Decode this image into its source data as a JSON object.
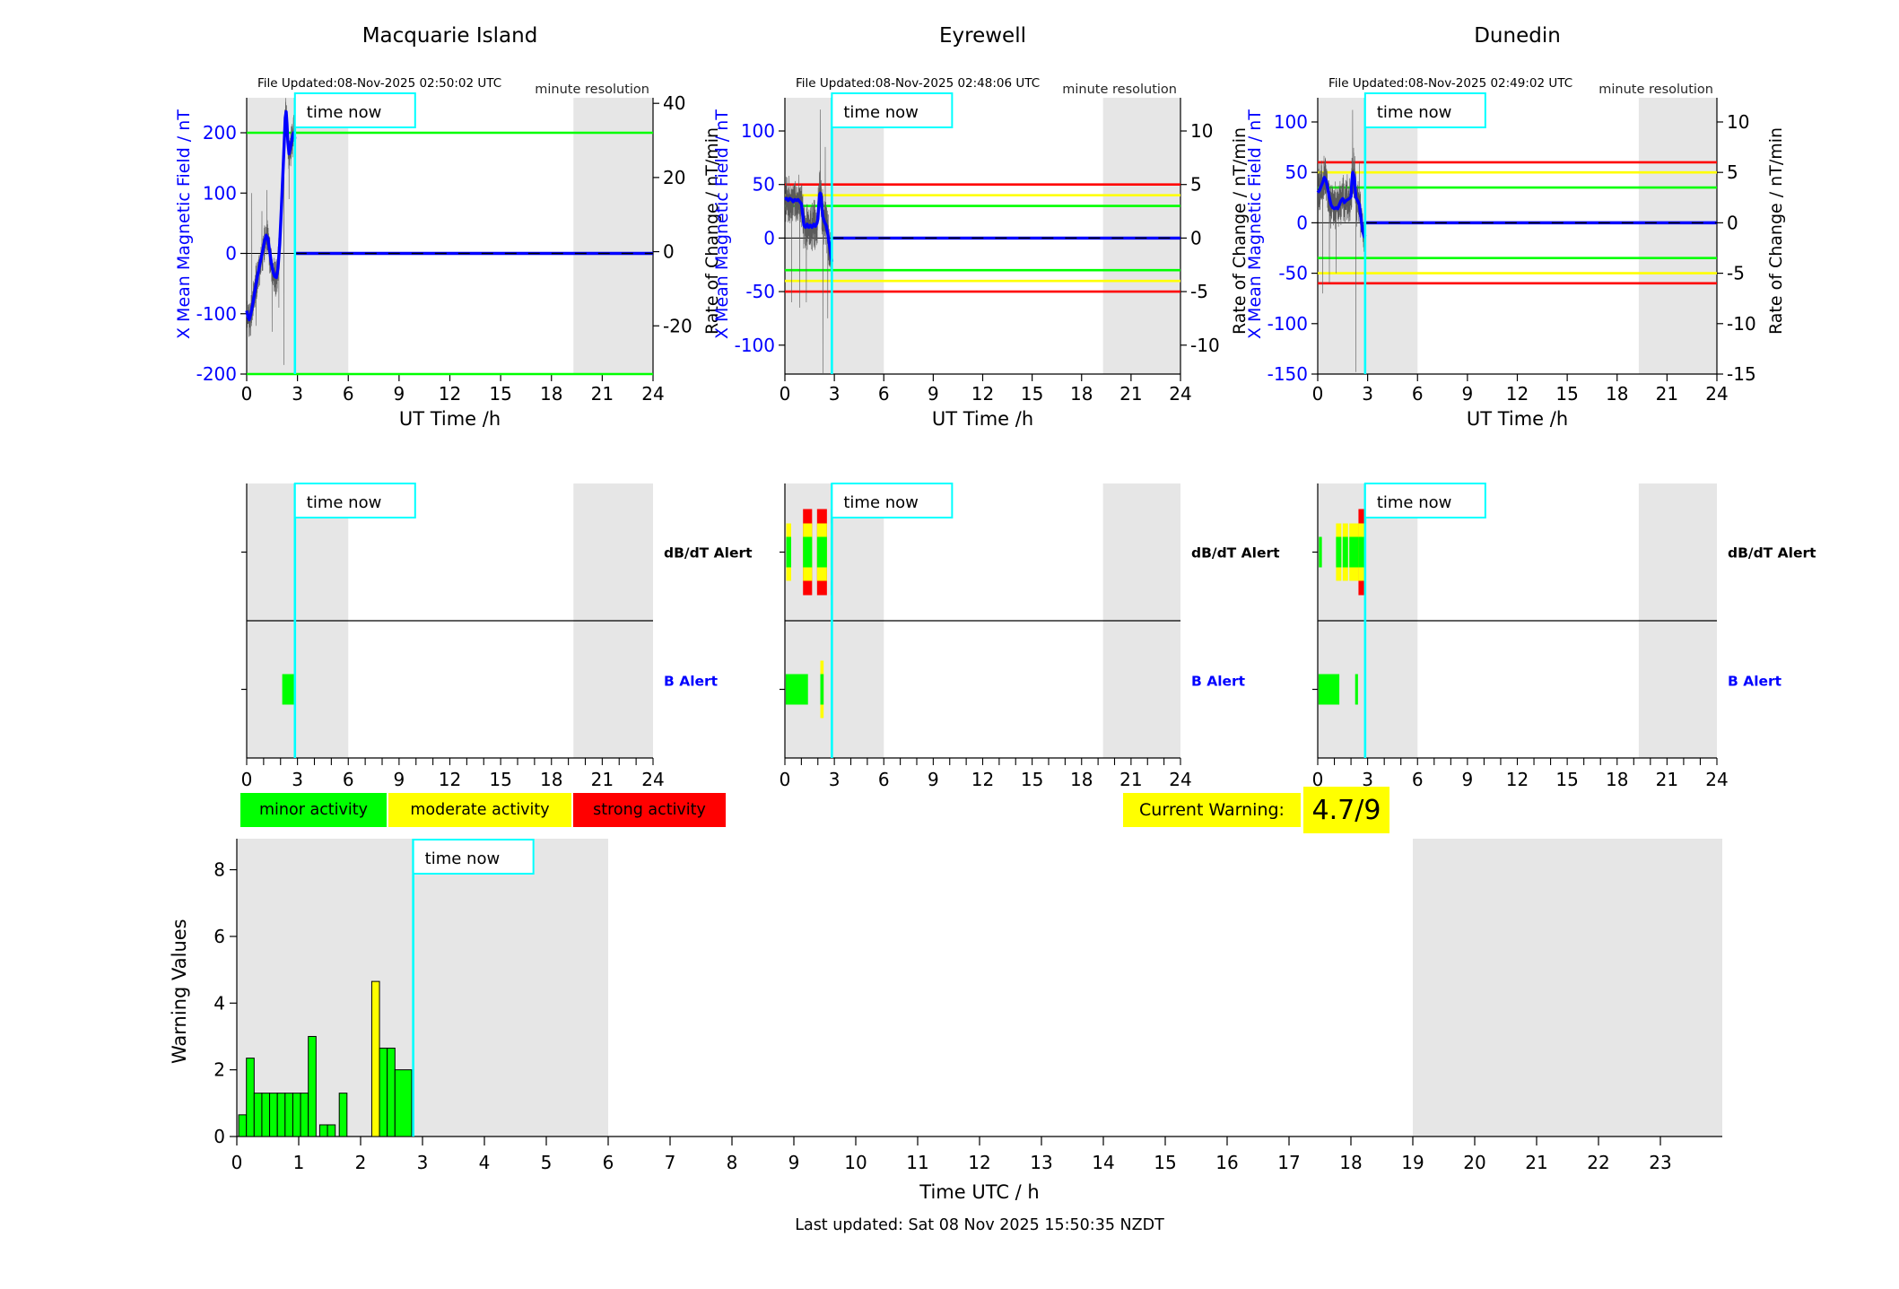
{
  "page": {
    "last_updated": "Last updated: Sat 08 Nov 2025 15:50:35 NZDT"
  },
  "colors": {
    "minor": "#00ff00",
    "moderate": "#ffff00",
    "strong": "#ff0000",
    "data_blue": "#0000ff",
    "axis_blue": "#0000ff",
    "time_now_cyan": "#00ffff",
    "shade_gray": "#e6e6e6",
    "noise_gray": "#5a5a5a",
    "warning_box": "#ffff00"
  },
  "labels": {
    "time_now": "time now",
    "minute_resolution": "minute resolution",
    "dbdt_alert": "dB/dT Alert",
    "b_alert": "B Alert",
    "ut_time": "UT Time /h"
  },
  "legend": [
    {
      "label": "minor activity",
      "color_key": "minor"
    },
    {
      "label": "moderate activity",
      "color_key": "moderate"
    },
    {
      "label": "strong activity",
      "color_key": "strong"
    }
  ],
  "warning": {
    "label": "Current Warning:",
    "value": "4.7/9"
  },
  "chart_data": [
    {
      "type": "line",
      "station": "Macquarie Island",
      "file_updated": "File Updated:08-Nov-2025 02:50:02 UTC",
      "resolution_label": "minute resolution",
      "ylabel_left": "X Mean Magnetic Field / nT",
      "ylabel_right": "Rate of Change / nT/min",
      "xlabel": "UT Time /h",
      "xlim": [
        0,
        24
      ],
      "x_ticks": [
        0,
        3,
        6,
        9,
        12,
        15,
        18,
        21,
        24
      ],
      "left_ticks": [
        200,
        100,
        0,
        -100,
        -200
      ],
      "left_range": [
        -200,
        258
      ],
      "right_ticks": [
        40,
        20,
        0,
        -20
      ],
      "right_range": [
        -33,
        41.5
      ],
      "thresholds": [
        {
          "value": 200,
          "level": "minor"
        },
        {
          "value": -200,
          "level": "minor"
        }
      ],
      "shade_bands": [
        [
          0,
          6
        ],
        [
          19.3,
          24
        ]
      ],
      "time_now_h": 2.85,
      "series": [
        [
          0,
          -95
        ],
        [
          0.08,
          -105
        ],
        [
          0.15,
          -110
        ],
        [
          0.25,
          -100
        ],
        [
          0.35,
          -85
        ],
        [
          0.5,
          -60
        ],
        [
          0.65,
          -35
        ],
        [
          0.8,
          -15
        ],
        [
          0.95,
          5
        ],
        [
          1.05,
          20
        ],
        [
          1.15,
          30
        ],
        [
          1.25,
          25
        ],
        [
          1.35,
          5
        ],
        [
          1.45,
          -15
        ],
        [
          1.55,
          -30
        ],
        [
          1.65,
          -38
        ],
        [
          1.75,
          -40
        ],
        [
          1.85,
          -25
        ],
        [
          1.95,
          15
        ],
        [
          2.05,
          75
        ],
        [
          2.15,
          140
        ],
        [
          2.22,
          185
        ],
        [
          2.28,
          225
        ],
        [
          2.33,
          235
        ],
        [
          2.38,
          215
        ],
        [
          2.43,
          185
        ],
        [
          2.5,
          165
        ],
        [
          2.58,
          175
        ],
        [
          2.65,
          185
        ],
        [
          2.72,
          195
        ],
        [
          2.78,
          200
        ],
        [
          2.85,
          190
        ]
      ],
      "flat_value_after_now": 0,
      "noise": {
        "amp": 38,
        "t_end": 2.88,
        "seed": 11,
        "spikes": [
          [
            0.3,
            100
          ],
          [
            0.55,
            -120
          ],
          [
            0.9,
            70
          ],
          [
            1.2,
            105
          ],
          [
            1.5,
            -130
          ],
          [
            1.9,
            -90
          ],
          [
            2.2,
            -185
          ],
          [
            2.5,
            90
          ]
        ]
      },
      "alerts": {
        "dbdt_bars": [],
        "b_bars": [
          {
            "t0": 2.1,
            "t1": 2.9,
            "level": "minor"
          }
        ]
      }
    },
    {
      "type": "line",
      "station": "Eyrewell",
      "file_updated": "File Updated:08-Nov-2025 02:48:06 UTC",
      "resolution_label": "minute resolution",
      "ylabel_left": "X Mean Magnetic Field / nT",
      "ylabel_right": "Rate of Change / nT/min",
      "xlabel": "UT Time /h",
      "xlim": [
        0,
        24
      ],
      "x_ticks": [
        0,
        3,
        6,
        9,
        12,
        15,
        18,
        21,
        24
      ],
      "left_ticks": [
        100,
        50,
        0,
        -50,
        -100
      ],
      "left_range": [
        -127,
        131
      ],
      "right_ticks": [
        10,
        5,
        0,
        -5,
        -10
      ],
      "right_range": [
        -12.7,
        13.1
      ],
      "thresholds": [
        {
          "value": 50,
          "level": "strong"
        },
        {
          "value": 40,
          "level": "moderate"
        },
        {
          "value": 30,
          "level": "minor"
        },
        {
          "value": -30,
          "level": "minor"
        },
        {
          "value": -40,
          "level": "moderate"
        },
        {
          "value": -50,
          "level": "strong"
        }
      ],
      "shade_bands": [
        [
          0,
          6
        ],
        [
          19.3,
          24
        ]
      ],
      "time_now_h": 2.85,
      "series": [
        [
          0,
          36
        ],
        [
          0.1,
          37
        ],
        [
          0.2,
          35
        ],
        [
          0.3,
          37
        ],
        [
          0.4,
          36
        ],
        [
          0.5,
          34
        ],
        [
          0.6,
          36
        ],
        [
          0.7,
          35
        ],
        [
          0.8,
          36
        ],
        [
          0.9,
          34
        ],
        [
          1.0,
          32
        ],
        [
          1.08,
          22
        ],
        [
          1.15,
          12
        ],
        [
          1.25,
          10
        ],
        [
          1.35,
          13
        ],
        [
          1.45,
          10
        ],
        [
          1.55,
          12
        ],
        [
          1.65,
          10
        ],
        [
          1.75,
          13
        ],
        [
          1.85,
          11
        ],
        [
          1.95,
          14
        ],
        [
          2.0,
          18
        ],
        [
          2.05,
          30
        ],
        [
          2.1,
          40
        ],
        [
          2.15,
          42
        ],
        [
          2.2,
          38
        ],
        [
          2.25,
          28
        ],
        [
          2.3,
          20
        ],
        [
          2.4,
          15
        ],
        [
          2.5,
          12
        ],
        [
          2.6,
          4
        ],
        [
          2.7,
          -6
        ],
        [
          2.78,
          -15
        ],
        [
          2.85,
          -22
        ]
      ],
      "flat_value_after_now": 0,
      "noise": {
        "amp": 26,
        "t_end": 2.88,
        "seed": 23,
        "spikes": [
          [
            0.4,
            -60
          ],
          [
            0.9,
            -65
          ],
          [
            1.3,
            -60
          ],
          [
            2.15,
            120
          ],
          [
            2.3,
            -130
          ],
          [
            2.45,
            85
          ],
          [
            2.6,
            -75
          ]
        ]
      },
      "alerts": {
        "dbdt_bars": [
          {
            "t0": 0.08,
            "t1": 0.38,
            "level": "moderate"
          },
          {
            "t0": 1.1,
            "t1": 1.65,
            "level": "strong"
          },
          {
            "t0": 1.95,
            "t1": 2.55,
            "level": "strong"
          },
          {
            "t0": 2.78,
            "t1": 2.87,
            "level": "strong"
          }
        ],
        "b_bars": [
          {
            "t0": 0.05,
            "t1": 1.4,
            "level": "minor"
          },
          {
            "t0": 2.15,
            "t1": 2.35,
            "level": "moderate"
          }
        ]
      }
    },
    {
      "type": "line",
      "station": "Dunedin",
      "file_updated": "File Updated:08-Nov-2025 02:49:02 UTC",
      "resolution_label": "minute resolution",
      "ylabel_left": "X Mean Magnetic Field / nT",
      "ylabel_right": "Rate of Change / nT/min",
      "xlabel": "UT Time /h",
      "xlim": [
        0,
        24
      ],
      "x_ticks": [
        0,
        3,
        6,
        9,
        12,
        15,
        18,
        21,
        24
      ],
      "left_ticks": [
        100,
        50,
        0,
        -50,
        -100,
        -150
      ],
      "left_range": [
        -150,
        124
      ],
      "right_ticks": [
        10,
        5,
        0,
        -5,
        -10,
        -15
      ],
      "right_range": [
        -15,
        12.4
      ],
      "thresholds": [
        {
          "value": 60,
          "level": "strong"
        },
        {
          "value": 50,
          "level": "moderate"
        },
        {
          "value": 35,
          "level": "minor"
        },
        {
          "value": -35,
          "level": "minor"
        },
        {
          "value": -50,
          "level": "moderate"
        },
        {
          "value": -60,
          "level": "strong"
        }
      ],
      "shade_bands": [
        [
          0,
          6
        ],
        [
          19.3,
          24
        ]
      ],
      "time_now_h": 2.85,
      "series": [
        [
          0,
          30
        ],
        [
          0.1,
          32
        ],
        [
          0.2,
          36
        ],
        [
          0.3,
          40
        ],
        [
          0.4,
          45
        ],
        [
          0.5,
          42
        ],
        [
          0.6,
          34
        ],
        [
          0.7,
          25
        ],
        [
          0.8,
          18
        ],
        [
          0.9,
          15
        ],
        [
          1.0,
          14
        ],
        [
          1.1,
          15
        ],
        [
          1.2,
          14
        ],
        [
          1.3,
          18
        ],
        [
          1.4,
          22
        ],
        [
          1.5,
          24
        ],
        [
          1.6,
          20
        ],
        [
          1.7,
          22
        ],
        [
          1.8,
          23
        ],
        [
          1.9,
          24
        ],
        [
          2.0,
          26
        ],
        [
          2.05,
          40
        ],
        [
          2.1,
          50
        ],
        [
          2.15,
          48
        ],
        [
          2.2,
          45
        ],
        [
          2.25,
          35
        ],
        [
          2.3,
          25
        ],
        [
          2.4,
          22
        ],
        [
          2.5,
          18
        ],
        [
          2.6,
          5
        ],
        [
          2.7,
          -8
        ],
        [
          2.8,
          -14
        ],
        [
          2.85,
          -12
        ]
      ],
      "flat_value_after_now": 0,
      "noise": {
        "amp": 28,
        "t_end": 2.88,
        "seed": 37,
        "spikes": [
          [
            0.3,
            -70
          ],
          [
            0.7,
            -60
          ],
          [
            1.1,
            -50
          ],
          [
            2.1,
            112
          ],
          [
            2.3,
            -148
          ],
          [
            2.5,
            60
          ]
        ]
      },
      "alerts": {
        "dbdt_bars": [
          {
            "t0": 0.07,
            "t1": 0.25,
            "level": "minor"
          },
          {
            "t0": 1.1,
            "t1": 1.42,
            "level": "moderate"
          },
          {
            "t0": 1.5,
            "t1": 1.82,
            "level": "moderate"
          },
          {
            "t0": 1.9,
            "t1": 2.45,
            "level": "moderate"
          },
          {
            "t0": 2.45,
            "t1": 2.85,
            "level": "strong"
          }
        ],
        "b_bars": [
          {
            "t0": 0.05,
            "t1": 1.3,
            "level": "minor"
          },
          {
            "t0": 2.25,
            "t1": 2.42,
            "level": "minor"
          }
        ]
      }
    },
    {
      "type": "bar",
      "title": "Warning Values",
      "ylabel": "Warning Values",
      "xlabel": "Time UTC / h",
      "ylim": [
        0,
        8.93
      ],
      "y_ticks": [
        0,
        2,
        4,
        6,
        8
      ],
      "xlim": [
        0,
        24
      ],
      "x_ticks": [
        0,
        1,
        2,
        3,
        4,
        5,
        6,
        7,
        8,
        9,
        10,
        11,
        12,
        13,
        14,
        15,
        16,
        17,
        18,
        19,
        20,
        21,
        22,
        23
      ],
      "shade_bands": [
        [
          0,
          6
        ],
        [
          19,
          24
        ]
      ],
      "time_now_h": 2.85,
      "bars": [
        {
          "t": 0.03,
          "w": 0.125,
          "value": 0.65,
          "level": "minor"
        },
        {
          "t": 0.155,
          "w": 0.125,
          "value": 2.35,
          "level": "minor"
        },
        {
          "t": 0.28,
          "w": 0.125,
          "value": 1.3,
          "level": "minor"
        },
        {
          "t": 0.405,
          "w": 0.125,
          "value": 1.3,
          "level": "minor"
        },
        {
          "t": 0.53,
          "w": 0.125,
          "value": 1.3,
          "level": "minor"
        },
        {
          "t": 0.655,
          "w": 0.125,
          "value": 1.3,
          "level": "minor"
        },
        {
          "t": 0.78,
          "w": 0.125,
          "value": 1.3,
          "level": "minor"
        },
        {
          "t": 0.905,
          "w": 0.125,
          "value": 1.3,
          "level": "minor"
        },
        {
          "t": 1.03,
          "w": 0.125,
          "value": 1.3,
          "level": "minor"
        },
        {
          "t": 1.155,
          "w": 0.125,
          "value": 3.0,
          "level": "minor"
        },
        {
          "t": 1.34,
          "w": 0.125,
          "value": 0.35,
          "level": "minor"
        },
        {
          "t": 1.465,
          "w": 0.125,
          "value": 0.35,
          "level": "minor"
        },
        {
          "t": 1.655,
          "w": 0.125,
          "value": 1.3,
          "level": "minor"
        },
        {
          "t": 2.18,
          "w": 0.125,
          "value": 4.65,
          "level": "moderate"
        },
        {
          "t": 2.305,
          "w": 0.125,
          "value": 2.65,
          "level": "minor"
        },
        {
          "t": 2.43,
          "w": 0.125,
          "value": 2.65,
          "level": "minor"
        },
        {
          "t": 2.555,
          "w": 0.27,
          "value": 2.0,
          "level": "minor"
        }
      ]
    }
  ]
}
